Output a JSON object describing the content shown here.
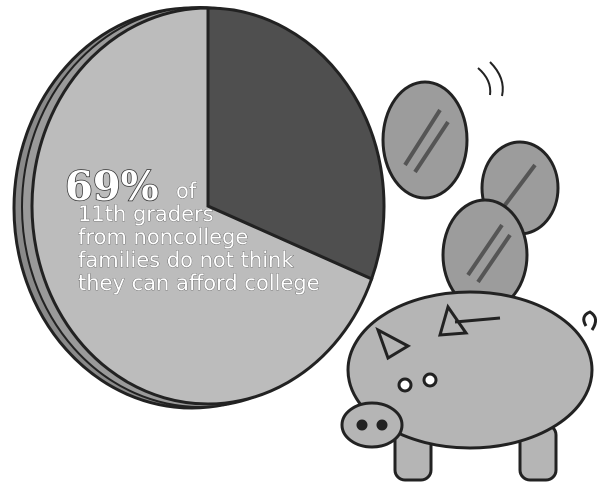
{
  "chart_data": {
    "type": "pie",
    "categories": [
      null,
      null
    ],
    "values": [
      69,
      31
    ],
    "value_labels": [
      "69%",
      null
    ],
    "colors": [
      "#bcbcbc",
      "#4f4f4f"
    ],
    "annotation": [
      "of",
      "11th graders",
      "from noncollege",
      "families do not think",
      "they can afford college"
    ]
  }
}
